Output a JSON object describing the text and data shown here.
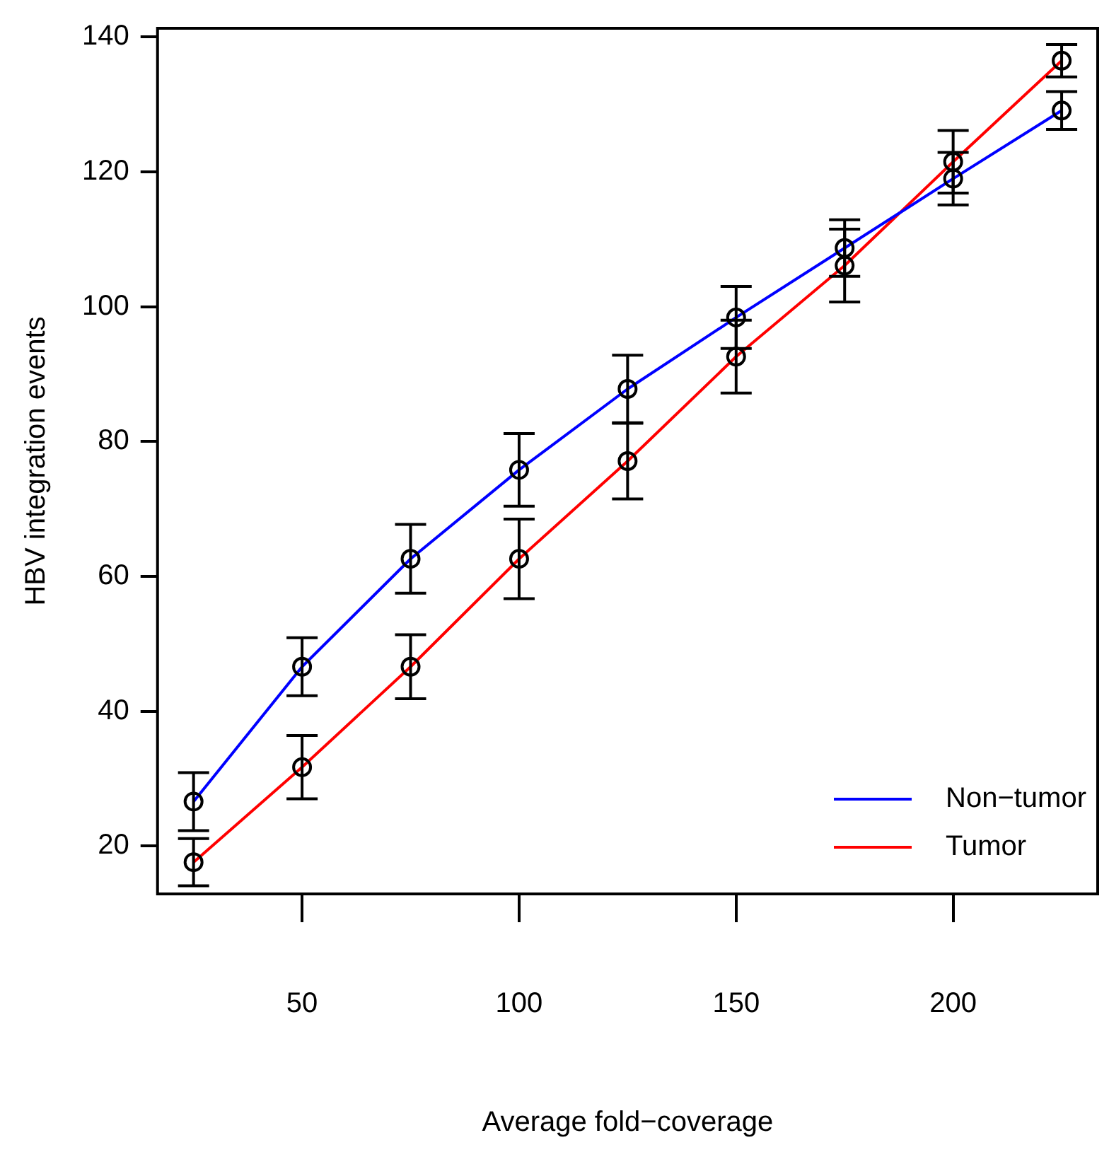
{
  "chart_data": {
    "type": "line",
    "xlabel": "Average fold−coverage",
    "ylabel": "HBV integration events",
    "x": [
      25,
      50,
      75,
      100,
      125,
      150,
      175,
      200,
      225
    ],
    "series": [
      {
        "name": "Non−tumor",
        "color": "#0000ff",
        "values": [
          26.6,
          46.6,
          62.6,
          75.8,
          87.8,
          98.4,
          108.7,
          119.0,
          129.1
        ],
        "errors": [
          4.3,
          4.3,
          5.1,
          5.4,
          5.0,
          4.6,
          4.2,
          3.9,
          2.8
        ]
      },
      {
        "name": "Tumor",
        "color": "#ff0000",
        "values": [
          17.6,
          31.7,
          46.6,
          62.6,
          77.1,
          92.6,
          106.1,
          121.5,
          136.5
        ],
        "errors": [
          3.5,
          4.7,
          4.75,
          5.9,
          5.6,
          5.4,
          5.4,
          4.65,
          2.4
        ]
      }
    ],
    "xlim": [
      16.7,
      233.3
    ],
    "xticks": [
      50,
      100,
      150,
      200
    ],
    "ylim": [
      12.9,
      141.3
    ],
    "yticks": [
      20,
      40,
      60,
      80,
      100,
      120,
      140
    ],
    "grid": false,
    "legend": "bottom right",
    "marker": "circle",
    "line_style": "solid"
  }
}
